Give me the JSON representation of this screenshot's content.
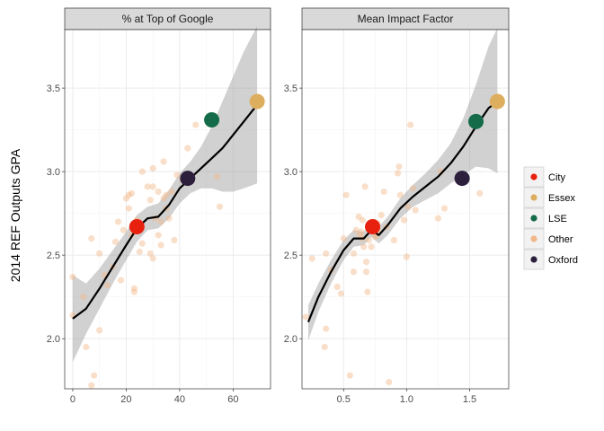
{
  "chart_data": {
    "type": "scatter",
    "ylabel": "2014 REF Outputs GPA",
    "ylim": [
      1.7,
      3.85
    ],
    "yticks": [
      2.0,
      2.5,
      3.0,
      3.5
    ],
    "ytick_labels": [
      "2.0",
      "2.5",
      "3.0",
      "3.5"
    ],
    "grid": true,
    "legend_position": "right",
    "legend": [
      {
        "label": "City",
        "color": "#e8210f"
      },
      {
        "label": "Essex",
        "color": "#deae5f"
      },
      {
        "label": "LSE",
        "color": "#146b49"
      },
      {
        "label": "Other",
        "color": "#f2b88a"
      },
      {
        "label": "Oxford",
        "color": "#2c1f3c"
      }
    ],
    "facets": [
      {
        "title": "% at Top of Google",
        "xlim": [
          -3,
          74
        ],
        "xticks": [
          0,
          20,
          40,
          60
        ],
        "xtick_labels": [
          "0",
          "20",
          "40",
          "60"
        ],
        "highlight": [
          {
            "group": "City",
            "x": 24,
            "y": 2.67
          },
          {
            "group": "Essex",
            "x": 69,
            "y": 3.42
          },
          {
            "group": "LSE",
            "x": 52,
            "y": 3.31
          },
          {
            "group": "Oxford",
            "x": 43,
            "y": 2.96
          }
        ],
        "other": [
          [
            0,
            2.37
          ],
          [
            0,
            2.14
          ],
          [
            4,
            2.25
          ],
          [
            5,
            1.95
          ],
          [
            7,
            2.6
          ],
          [
            7,
            1.72
          ],
          [
            8,
            1.78
          ],
          [
            10,
            2.05
          ],
          [
            10,
            2.51
          ],
          [
            12,
            2.38
          ],
          [
            13,
            2.32
          ],
          [
            15,
            2.43
          ],
          [
            16,
            2.58
          ],
          [
            17,
            2.7
          ],
          [
            18,
            2.35
          ],
          [
            19,
            2.65
          ],
          [
            20,
            2.84
          ],
          [
            21,
            2.78
          ],
          [
            21,
            2.86
          ],
          [
            22,
            2.87
          ],
          [
            22,
            2.62
          ],
          [
            23,
            2.3
          ],
          [
            23,
            2.28
          ],
          [
            24,
            2.71
          ],
          [
            25,
            2.52
          ],
          [
            25,
            2.66
          ],
          [
            26,
            3.0
          ],
          [
            26,
            2.57
          ],
          [
            28,
            2.91
          ],
          [
            29,
            2.83
          ],
          [
            29,
            2.51
          ],
          [
            30,
            3.02
          ],
          [
            30,
            2.91
          ],
          [
            30,
            2.48
          ],
          [
            31,
            2.72
          ],
          [
            32,
            2.88
          ],
          [
            32,
            2.62
          ],
          [
            33,
            2.7
          ],
          [
            33,
            2.56
          ],
          [
            34,
            2.84
          ],
          [
            34,
            3.06
          ],
          [
            35,
            2.86
          ],
          [
            35,
            2.78
          ],
          [
            36,
            2.72
          ],
          [
            37,
            2.88
          ],
          [
            38,
            2.59
          ],
          [
            39,
            2.98
          ],
          [
            41,
            2.95
          ],
          [
            43,
            3.14
          ],
          [
            46,
            3.28
          ],
          [
            54,
            2.97
          ],
          [
            55,
            2.79
          ]
        ],
        "smooth": [
          [
            0,
            2.12
          ],
          [
            5,
            2.18
          ],
          [
            10,
            2.3
          ],
          [
            15,
            2.43
          ],
          [
            20,
            2.56
          ],
          [
            24,
            2.66
          ],
          [
            28,
            2.72
          ],
          [
            32,
            2.73
          ],
          [
            36,
            2.8
          ],
          [
            40,
            2.9
          ],
          [
            44,
            2.96
          ],
          [
            48,
            3.02
          ],
          [
            52,
            3.08
          ],
          [
            56,
            3.14
          ],
          [
            60,
            3.22
          ],
          [
            64,
            3.3
          ],
          [
            69,
            3.4
          ]
        ],
        "band_upper": [
          [
            0,
            2.38
          ],
          [
            5,
            2.33
          ],
          [
            10,
            2.42
          ],
          [
            15,
            2.53
          ],
          [
            20,
            2.64
          ],
          [
            24,
            2.74
          ],
          [
            28,
            2.79
          ],
          [
            32,
            2.81
          ],
          [
            36,
            2.89
          ],
          [
            40,
            2.99
          ],
          [
            44,
            3.06
          ],
          [
            48,
            3.15
          ],
          [
            52,
            3.27
          ],
          [
            56,
            3.42
          ],
          [
            60,
            3.57
          ],
          [
            64,
            3.72
          ],
          [
            69,
            3.87
          ]
        ],
        "band_lower": [
          [
            0,
            1.86
          ],
          [
            5,
            2.03
          ],
          [
            10,
            2.18
          ],
          [
            15,
            2.33
          ],
          [
            20,
            2.47
          ],
          [
            24,
            2.58
          ],
          [
            28,
            2.65
          ],
          [
            32,
            2.66
          ],
          [
            36,
            2.72
          ],
          [
            40,
            2.81
          ],
          [
            44,
            2.87
          ],
          [
            48,
            2.9
          ],
          [
            52,
            2.9
          ],
          [
            56,
            2.88
          ],
          [
            60,
            2.88
          ],
          [
            64,
            2.9
          ],
          [
            69,
            2.93
          ]
        ]
      },
      {
        "title": "Mean Impact Factor",
        "xlim": [
          0.17,
          1.81
        ],
        "xticks": [
          0.5,
          1.0,
          1.5
        ],
        "xtick_labels": [
          "0.5",
          "1.0",
          "1.5"
        ],
        "highlight": [
          {
            "group": "City",
            "x": 0.73,
            "y": 2.67
          },
          {
            "group": "Essex",
            "x": 1.72,
            "y": 3.42
          },
          {
            "group": "LSE",
            "x": 1.55,
            "y": 3.3
          },
          {
            "group": "Oxford",
            "x": 1.44,
            "y": 2.96
          }
        ],
        "other": [
          [
            0.2,
            2.13
          ],
          [
            0.25,
            2.48
          ],
          [
            0.35,
            1.95
          ],
          [
            0.36,
            2.06
          ],
          [
            0.36,
            2.51
          ],
          [
            0.4,
            2.41
          ],
          [
            0.45,
            2.31
          ],
          [
            0.48,
            2.27
          ],
          [
            0.5,
            2.6
          ],
          [
            0.52,
            2.86
          ],
          [
            0.55,
            1.78
          ],
          [
            0.58,
            2.51
          ],
          [
            0.58,
            2.4
          ],
          [
            0.6,
            2.65
          ],
          [
            0.62,
            2.73
          ],
          [
            0.63,
            2.62
          ],
          [
            0.64,
            2.64
          ],
          [
            0.65,
            2.71
          ],
          [
            0.65,
            2.6
          ],
          [
            0.66,
            2.55
          ],
          [
            0.67,
            2.91
          ],
          [
            0.68,
            2.46
          ],
          [
            0.68,
            2.4
          ],
          [
            0.69,
            2.28
          ],
          [
            0.7,
            2.59
          ],
          [
            0.7,
            2.66
          ],
          [
            0.72,
            2.55
          ],
          [
            0.73,
            2.67
          ],
          [
            0.74,
            2.7
          ],
          [
            0.75,
            2.61
          ],
          [
            0.76,
            2.62
          ],
          [
            0.77,
            2.69
          ],
          [
            0.78,
            2.64
          ],
          [
            0.8,
            2.74
          ],
          [
            0.82,
            2.88
          ],
          [
            0.84,
            2.67
          ],
          [
            0.86,
            1.74
          ],
          [
            0.9,
            2.59
          ],
          [
            0.93,
            2.99
          ],
          [
            0.94,
            3.03
          ],
          [
            0.95,
            2.86
          ],
          [
            0.98,
            2.71
          ],
          [
            1.0,
            2.49
          ],
          [
            1.01,
            2.79
          ],
          [
            1.03,
            3.28
          ],
          [
            1.05,
            2.9
          ],
          [
            1.07,
            2.77
          ],
          [
            1.25,
            2.72
          ],
          [
            1.27,
            3.0
          ],
          [
            1.3,
            2.78
          ],
          [
            1.58,
            2.87
          ]
        ],
        "smooth": [
          [
            0.22,
            2.1
          ],
          [
            0.3,
            2.25
          ],
          [
            0.4,
            2.4
          ],
          [
            0.5,
            2.53
          ],
          [
            0.58,
            2.6
          ],
          [
            0.66,
            2.6
          ],
          [
            0.72,
            2.65
          ],
          [
            0.78,
            2.62
          ],
          [
            0.85,
            2.68
          ],
          [
            0.95,
            2.78
          ],
          [
            1.05,
            2.85
          ],
          [
            1.15,
            2.91
          ],
          [
            1.25,
            2.97
          ],
          [
            1.35,
            3.05
          ],
          [
            1.45,
            3.15
          ],
          [
            1.55,
            3.27
          ],
          [
            1.65,
            3.38
          ],
          [
            1.72,
            3.42
          ]
        ],
        "band_upper": [
          [
            0.22,
            2.2
          ],
          [
            0.3,
            2.33
          ],
          [
            0.4,
            2.47
          ],
          [
            0.5,
            2.59
          ],
          [
            0.58,
            2.65
          ],
          [
            0.66,
            2.64
          ],
          [
            0.72,
            2.69
          ],
          [
            0.78,
            2.67
          ],
          [
            0.85,
            2.73
          ],
          [
            0.95,
            2.84
          ],
          [
            1.05,
            2.92
          ],
          [
            1.15,
            2.99
          ],
          [
            1.25,
            3.07
          ],
          [
            1.35,
            3.17
          ],
          [
            1.45,
            3.32
          ],
          [
            1.55,
            3.52
          ],
          [
            1.65,
            3.75
          ],
          [
            1.72,
            3.86
          ]
        ],
        "band_lower": [
          [
            0.22,
            1.99
          ],
          [
            0.3,
            2.16
          ],
          [
            0.4,
            2.33
          ],
          [
            0.5,
            2.47
          ],
          [
            0.58,
            2.55
          ],
          [
            0.66,
            2.56
          ],
          [
            0.72,
            2.61
          ],
          [
            0.78,
            2.57
          ],
          [
            0.85,
            2.62
          ],
          [
            0.95,
            2.72
          ],
          [
            1.05,
            2.79
          ],
          [
            1.15,
            2.83
          ],
          [
            1.25,
            2.87
          ],
          [
            1.35,
            2.93
          ],
          [
            1.45,
            2.98
          ],
          [
            1.55,
            3.03
          ],
          [
            1.65,
            3.02
          ],
          [
            1.72,
            2.99
          ]
        ]
      }
    ]
  }
}
